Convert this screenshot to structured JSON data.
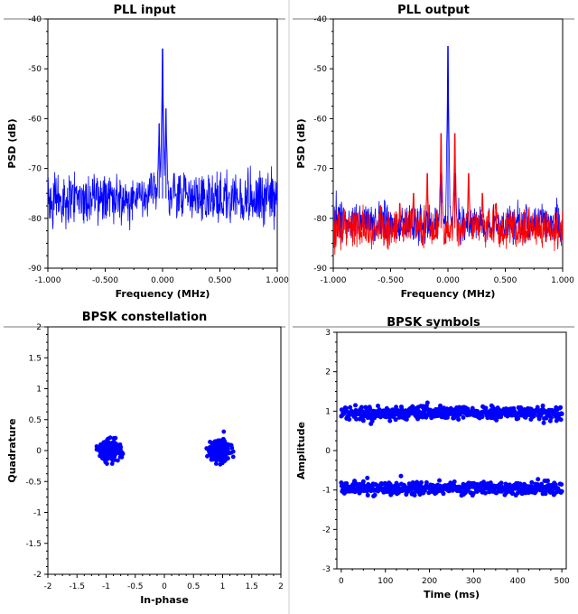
{
  "chart_data": [
    {
      "type": "line",
      "title": "PLL input",
      "xlabel": "Frequency (MHz)",
      "ylabel": "PSD (dB)",
      "xlim": [
        -1.0,
        1.0
      ],
      "ylim": [
        -90,
        -40
      ],
      "xticks": [
        -1.0,
        -0.5,
        0.0,
        0.5,
        1.0
      ],
      "xtick_labels": [
        "-1.000",
        "-0.500",
        "0.000",
        "0.500",
        "1.000"
      ],
      "yticks": [
        -90,
        -80,
        -70,
        -60,
        -50,
        -40
      ],
      "ytick_labels": [
        "-90",
        "-80",
        "-70",
        "-60",
        "-50",
        "-40"
      ],
      "grid": false,
      "series": [
        {
          "color": "#0000ff",
          "noise_floor_db": -76,
          "noise_spread_db": 4,
          "peaks": [
            {
              "x": 0.0,
              "y": -46
            },
            {
              "x": -0.03,
              "y": -61
            },
            {
              "x": 0.03,
              "y": -58
            },
            {
              "x": -0.1,
              "y": -71
            },
            {
              "x": 0.1,
              "y": -71
            },
            {
              "x": -0.2,
              "y": -73
            },
            {
              "x": 0.2,
              "y": -72
            }
          ]
        }
      ]
    },
    {
      "type": "line",
      "title": "PLL output",
      "xlabel": "Frequency (MHz)",
      "ylabel": "PSD (dB)",
      "xlim": [
        -1.0,
        1.0
      ],
      "ylim": [
        -90,
        -40
      ],
      "xticks": [
        -1.0,
        -0.5,
        0.0,
        0.5,
        1.0
      ],
      "xtick_labels": [
        "-1.000",
        "-0.500",
        "0.000",
        "0.500",
        "1.000"
      ],
      "yticks": [
        -90,
        -80,
        -70,
        -60,
        -50,
        -40
      ],
      "ytick_labels": [
        "-90",
        "-80",
        "-70",
        "-60",
        "-50",
        "-40"
      ],
      "grid": false,
      "series": [
        {
          "color": "#0000ff",
          "noise_floor_db": -81,
          "noise_spread_db": 3,
          "peaks": [
            {
              "x": 0.0,
              "y": -45.5
            },
            {
              "x": -0.06,
              "y": -71
            },
            {
              "x": 0.06,
              "y": -71
            }
          ]
        },
        {
          "color": "#ff0000",
          "noise_floor_db": -82,
          "noise_spread_db": 3,
          "peaks": [
            {
              "x": -0.06,
              "y": -63
            },
            {
              "x": 0.06,
              "y": -63
            },
            {
              "x": -0.18,
              "y": -71
            },
            {
              "x": 0.18,
              "y": -71
            },
            {
              "x": -0.3,
              "y": -75
            },
            {
              "x": 0.3,
              "y": -75
            },
            {
              "x": -0.42,
              "y": -77
            },
            {
              "x": 0.42,
              "y": -77
            }
          ]
        }
      ]
    },
    {
      "type": "scatter",
      "title": "BPSK constellation",
      "xlabel": "In-phase",
      "ylabel": "Quadrature",
      "xlim": [
        -2,
        2
      ],
      "ylim": [
        -2,
        2
      ],
      "xticks": [
        -2,
        -1.5,
        -1,
        -0.5,
        0,
        0.5,
        1,
        1.5,
        2
      ],
      "xtick_labels": [
        "-2",
        "-1.5",
        "-1",
        "-0.5",
        "0",
        "0.5",
        "1",
        "1.5",
        "2"
      ],
      "yticks": [
        -2,
        -1.5,
        -1,
        -0.5,
        0,
        0.5,
        1,
        1.5,
        2
      ],
      "ytick_labels": [
        "-2",
        "-1.5",
        "-1",
        "-0.5",
        "0",
        "0.5",
        "1",
        "1.5",
        "2"
      ],
      "grid": false,
      "series": [
        {
          "color": "#0000ff",
          "clusters": [
            {
              "x": -0.95,
              "y": 0.0,
              "spread": 0.1,
              "count": 300
            },
            {
              "x": 0.95,
              "y": 0.0,
              "spread": 0.1,
              "count": 300
            }
          ]
        }
      ]
    },
    {
      "type": "scatter",
      "title": "BPSK symbols",
      "xlabel": "Time (ms)",
      "ylabel": "Amplitude",
      "xlim": [
        -10,
        510
      ],
      "ylim": [
        -3,
        3
      ],
      "xticks": [
        0,
        100,
        200,
        300,
        400,
        500
      ],
      "xtick_labels": [
        "0",
        "100",
        "200",
        "300",
        "400",
        "500"
      ],
      "yticks": [
        -3,
        -2,
        -1,
        0,
        1,
        2,
        3
      ],
      "ytick_labels": [
        "-3",
        "-2",
        "-1",
        "0",
        "1",
        "2",
        "3"
      ],
      "grid": false,
      "series": [
        {
          "color": "#0000ff",
          "levels": [
            {
              "y": 0.95,
              "spread": 0.1,
              "count": 500
            },
            {
              "y": -0.95,
              "spread": 0.1,
              "count": 500
            }
          ],
          "x_range": [
            0,
            500
          ]
        }
      ]
    }
  ]
}
